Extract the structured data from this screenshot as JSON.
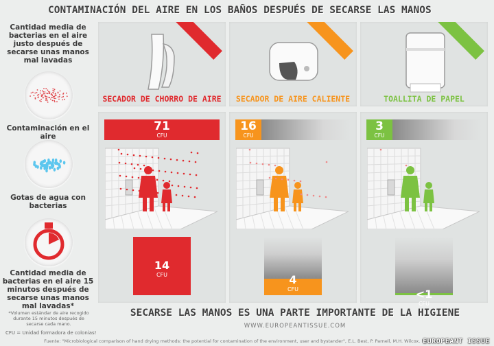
{
  "title": "CONTAMINACIÓN DEL AIRE EN LOS BAÑOS DESPUÉS DE SECARSE LAS MANOS",
  "left": {
    "label_top": "Cantidad media de bacterias en el aire justo después de secarse unas manos mal lavadas",
    "label_air": "Contaminación en el aire",
    "label_drops": "Gotas de agua con bacterias",
    "label_bottom": "Cantidad media de bacterias en el aire 15 minutos después de secarse unas manos mal lavadas*",
    "note": "*Volumen estándar de aire recogido durante 15 minutos después de secarse cada mano."
  },
  "devices": [
    {
      "name": "SECADOR DE CHORRO DE AIRE",
      "color": "#e02a2e",
      "immediate": "71",
      "immediate_value": 71,
      "later": "14",
      "later_value": 14,
      "unit": "CFU"
    },
    {
      "name": "SECADOR DE AIRE CALIENTE",
      "color": "#f7941d",
      "immediate": "16",
      "immediate_value": 16,
      "later": "4",
      "later_value": 4,
      "unit": "CFU"
    },
    {
      "name": "TOALLITA DE PAPEL",
      "color": "#7cc242",
      "immediate": "3",
      "immediate_value": 3,
      "later": "<1",
      "later_value": 0.5,
      "unit": "CFU"
    }
  ],
  "footer": {
    "tagline": "SECARSE LAS MANOS ES UNA PARTE IMPORTANTE DE LA HIGIENE",
    "url": "WWW.EUROPEANTISSUE.COM",
    "cfu_legend": "CFU = Unidad formadora de colonias!",
    "source": "Fuente: \"Microbiological comparison of hand drying methods: the potential for contamination of the environment, user and bystander\", E.L. Best, P. Parnell, M.H. Wilcox. Publicado en",
    "watermark": "EUROPEANT ISSUE"
  }
}
